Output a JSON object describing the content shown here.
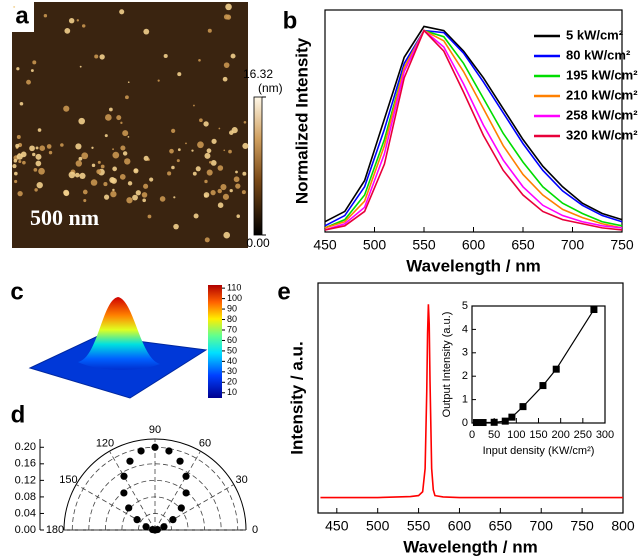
{
  "chart_data": [
    {
      "type": "image",
      "panel": "a",
      "scale_bar": "500 nm",
      "colorbar_label": "(nm)",
      "colorbar_ticks": [
        {
          "value": 0,
          "label": "0.00"
        },
        16.32
      ],
      "clim": [
        0,
        16.32
      ]
    },
    {
      "type": "line",
      "panel": "b",
      "x_label": "Wavelength / nm",
      "y_label": "Normalized Intensity",
      "x": [
        450,
        470,
        490,
        510,
        530,
        550,
        570,
        590,
        610,
        630,
        650,
        670,
        690,
        710,
        730,
        750
      ],
      "xlim": [
        450,
        750
      ],
      "xticks": [
        450,
        500,
        550,
        600,
        650,
        700,
        750
      ],
      "ylim": [
        0,
        1.08
      ],
      "legend": "upper right",
      "series": [
        {
          "name": "5 kW/cm²",
          "color": "#000000",
          "values": [
            0.05,
            0.1,
            0.25,
            0.55,
            0.85,
            1.0,
            0.98,
            0.88,
            0.75,
            0.6,
            0.45,
            0.32,
            0.22,
            0.14,
            0.09,
            0.06
          ]
        },
        {
          "name": "80 kW/cm²",
          "color": "#0000ff",
          "values": [
            0.03,
            0.08,
            0.22,
            0.5,
            0.82,
            0.98,
            0.97,
            0.87,
            0.73,
            0.58,
            0.43,
            0.3,
            0.2,
            0.13,
            0.08,
            0.05
          ]
        },
        {
          "name": "195 kW/cm²",
          "color": "#00dd00",
          "values": [
            0.02,
            0.06,
            0.18,
            0.45,
            0.8,
            0.98,
            0.95,
            0.82,
            0.65,
            0.48,
            0.34,
            0.22,
            0.14,
            0.09,
            0.05,
            0.03
          ]
        },
        {
          "name": "210 kW/cm²",
          "color": "#ff8000",
          "values": [
            0.02,
            0.05,
            0.15,
            0.42,
            0.8,
            0.98,
            0.93,
            0.78,
            0.6,
            0.42,
            0.28,
            0.18,
            0.11,
            0.07,
            0.04,
            0.02
          ]
        },
        {
          "name": "258 kW/cm²",
          "color": "#ff00ff",
          "values": [
            0.01,
            0.04,
            0.12,
            0.38,
            0.78,
            0.98,
            0.9,
            0.72,
            0.52,
            0.35,
            0.22,
            0.13,
            0.08,
            0.05,
            0.03,
            0.02
          ]
        },
        {
          "name": "320 kW/cm²",
          "color": "#e8003a",
          "values": [
            0.01,
            0.03,
            0.1,
            0.33,
            0.75,
            0.98,
            0.88,
            0.68,
            0.47,
            0.3,
            0.18,
            0.1,
            0.06,
            0.04,
            0.02,
            0.01
          ]
        }
      ]
    },
    {
      "type": "surface",
      "panel": "c",
      "colorbar_ticks": [
        10,
        20,
        30,
        40,
        50,
        60,
        70,
        80,
        90,
        100,
        110
      ],
      "clim": [
        5,
        113
      ]
    },
    {
      "type": "polar",
      "panel": "d",
      "theta": [
        0,
        10,
        20,
        30,
        40,
        50,
        60,
        70,
        80,
        90,
        100,
        110,
        120,
        130,
        140,
        150,
        160,
        170,
        180
      ],
      "values": [
        0,
        0.006,
        0.023,
        0.05,
        0.083,
        0.117,
        0.15,
        0.177,
        0.194,
        0.2,
        0.194,
        0.177,
        0.15,
        0.117,
        0.083,
        0.05,
        0.023,
        0.006,
        0
      ],
      "rlim": [
        0,
        0.22
      ],
      "rticks": [
        {
          "value": 0,
          "label": "0.00"
        },
        {
          "value": 0.04,
          "label": "0.04"
        },
        {
          "value": 0.08,
          "label": "0.08"
        },
        {
          "value": 0.12,
          "label": "0.12"
        },
        {
          "value": 0.16,
          "label": "0.16"
        },
        {
          "value": 0.2,
          "label": "0.20"
        }
      ],
      "thetaticks": [
        0,
        30,
        60,
        90,
        120,
        150,
        180
      ],
      "color": "#000000"
    },
    {
      "type": "line",
      "panel": "e",
      "x_label": "Wavelength / nm",
      "y_label": "Intensity / a.u.",
      "x": [
        430,
        500,
        540,
        550,
        555,
        558,
        560,
        561,
        562,
        563,
        564,
        566,
        568,
        570,
        580,
        600,
        700,
        800
      ],
      "xlim": [
        427,
        800
      ],
      "xticks": [
        450,
        500,
        550,
        600,
        650,
        700,
        750,
        800
      ],
      "ylim": [
        -0.08,
        1.11
      ],
      "series": [
        {
          "color": "#ff0000",
          "values": [
            0,
            0,
            0.005,
            0.01,
            0.03,
            0.15,
            0.55,
            0.85,
            1.0,
            0.9,
            0.6,
            0.15,
            0.04,
            0.01,
            0.003,
            0,
            0,
            0
          ]
        }
      ],
      "inset": {
        "type": "line",
        "marker": "square",
        "x_label": "Input density (KW/cm²)",
        "y_label": "Output Intensity (a.u.)",
        "x": [
          10,
          25,
          50,
          75,
          90,
          115,
          160,
          190,
          275
        ],
        "values": [
          0.02,
          0.02,
          0.03,
          0.08,
          0.25,
          0.7,
          1.6,
          2.3,
          4.85
        ],
        "xlim": [
          0,
          300
        ],
        "xticks": [
          0,
          50,
          100,
          150,
          200,
          250,
          300
        ],
        "ylim": [
          0,
          5
        ],
        "yticks": [
          0,
          1,
          2,
          3,
          4,
          5
        ],
        "color": "#000000"
      }
    }
  ]
}
